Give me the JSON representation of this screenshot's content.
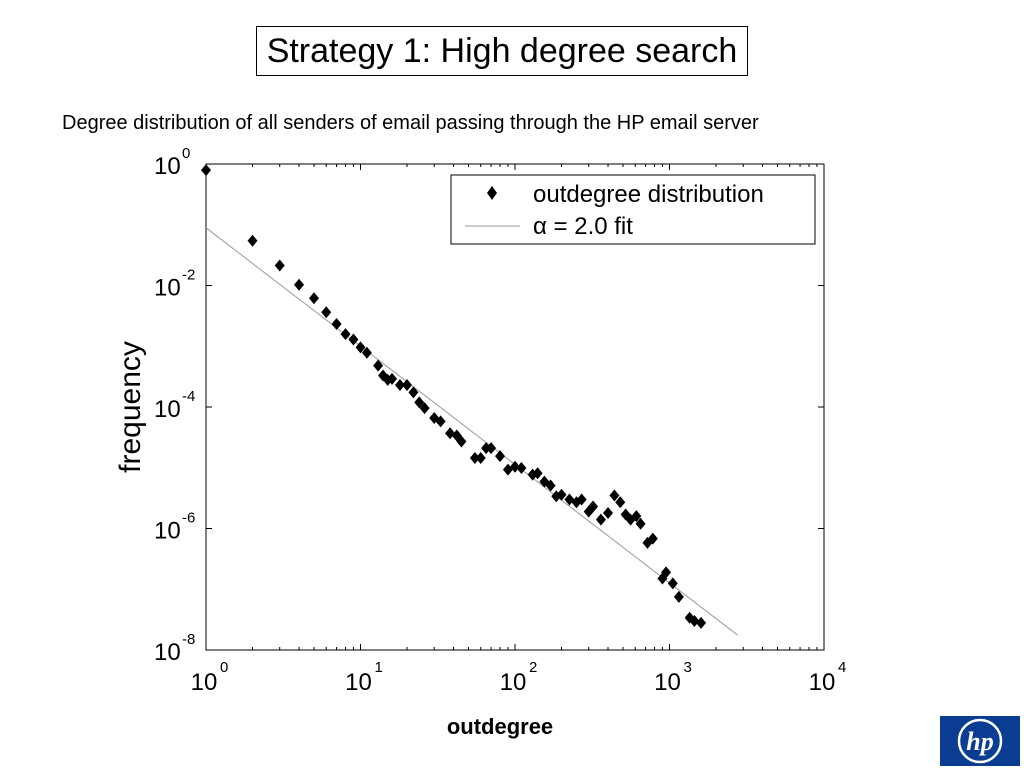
{
  "slide": {
    "title": "Strategy 1: High degree search",
    "subtitle": "Degree distribution of all senders of email passing through the HP email server"
  },
  "logo": {
    "text": "hp",
    "color": "#0a3d91"
  },
  "chart_data": {
    "type": "scatter",
    "xlabel": "outdegree",
    "ylabel": "frequency",
    "xscale": "log",
    "yscale": "log",
    "xlim": [
      1,
      10000
    ],
    "ylim": [
      1e-08,
      1
    ],
    "x_ticks": [
      {
        "base": "10",
        "exp": "0",
        "value": 1
      },
      {
        "base": "10",
        "exp": "1",
        "value": 10
      },
      {
        "base": "10",
        "exp": "2",
        "value": 100
      },
      {
        "base": "10",
        "exp": "3",
        "value": 1000
      },
      {
        "base": "10",
        "exp": "4",
        "value": 10000
      }
    ],
    "y_ticks": [
      {
        "base": "10",
        "exp": "0",
        "value": 1
      },
      {
        "base": "10",
        "exp": "-2",
        "value": 0.01
      },
      {
        "base": "10",
        "exp": "-4",
        "value": 0.0001
      },
      {
        "base": "10",
        "exp": "-6",
        "value": 1e-06
      },
      {
        "base": "10",
        "exp": "-8",
        "value": 1e-08
      }
    ],
    "legend": {
      "position": "top-right",
      "entries": [
        "outdegree distribution",
        "α = 2.0 fit"
      ]
    },
    "series": [
      {
        "name": "outdegree distribution",
        "marker": "diamond",
        "color": "#000000",
        "points": [
          [
            1,
            0.7943
          ],
          [
            2,
            0.0546
          ],
          [
            3,
            0.0213
          ],
          [
            4,
            0.0103
          ],
          [
            5,
            0.00618
          ],
          [
            6,
            0.00363
          ],
          [
            7,
            0.00232
          ],
          [
            8,
            0.00158
          ],
          [
            9,
            0.00129
          ],
          [
            10,
            0.00096
          ],
          [
            11,
            0.00078
          ],
          [
            13,
            0.00048
          ],
          [
            14,
            0.00033
          ],
          [
            15,
            0.00028
          ],
          [
            16,
            0.00029
          ],
          [
            18,
            0.00023
          ],
          [
            20,
            0.00023
          ],
          [
            22,
            0.000174
          ],
          [
            24,
            0.000119
          ],
          [
            26,
            9.6e-05
          ],
          [
            30,
            6.6e-05
          ],
          [
            33,
            5.8e-05
          ],
          [
            38,
            3.7e-05
          ],
          [
            42,
            3.4e-05
          ],
          [
            45,
            2.7e-05
          ],
          [
            55,
            1.45e-05
          ],
          [
            60,
            1.45e-05
          ],
          [
            65,
            2.1e-05
          ],
          [
            70,
            2.1e-05
          ],
          [
            80,
            1.55e-05
          ],
          [
            90,
            9.3e-06
          ],
          [
            100,
            1.04e-05
          ],
          [
            110,
            9.9e-06
          ],
          [
            130,
            7.7e-06
          ],
          [
            140,
            8.1e-06
          ],
          [
            155,
            5.9e-06
          ],
          [
            170,
            5.1e-06
          ],
          [
            185,
            3.4e-06
          ],
          [
            200,
            3.6e-06
          ],
          [
            225,
            3e-06
          ],
          [
            250,
            2.7e-06
          ],
          [
            270,
            3e-06
          ],
          [
            300,
            1.9e-06
          ],
          [
            320,
            2.3e-06
          ],
          [
            360,
            1.4e-06
          ],
          [
            400,
            1.8e-06
          ],
          [
            440,
            3.5e-06
          ],
          [
            480,
            2.7e-06
          ],
          [
            520,
            1.7e-06
          ],
          [
            560,
            1.4e-06
          ],
          [
            610,
            1.6e-06
          ],
          [
            650,
            1.2e-06
          ],
          [
            720,
            5.8e-07
          ],
          [
            780,
            6.8e-07
          ],
          [
            900,
            1.5e-07
          ],
          [
            950,
            1.9e-07
          ],
          [
            1050,
            1.25e-07
          ],
          [
            1150,
            7.5e-08
          ],
          [
            1350,
            3.4e-08
          ],
          [
            1450,
            3e-08
          ],
          [
            1600,
            2.8e-08
          ]
        ]
      },
      {
        "name": "α = 2.0 fit",
        "type": "line",
        "color": "#999999",
        "points": [
          [
            1,
            0.0891
          ],
          [
            2750,
            1.77e-08
          ]
        ]
      }
    ]
  }
}
